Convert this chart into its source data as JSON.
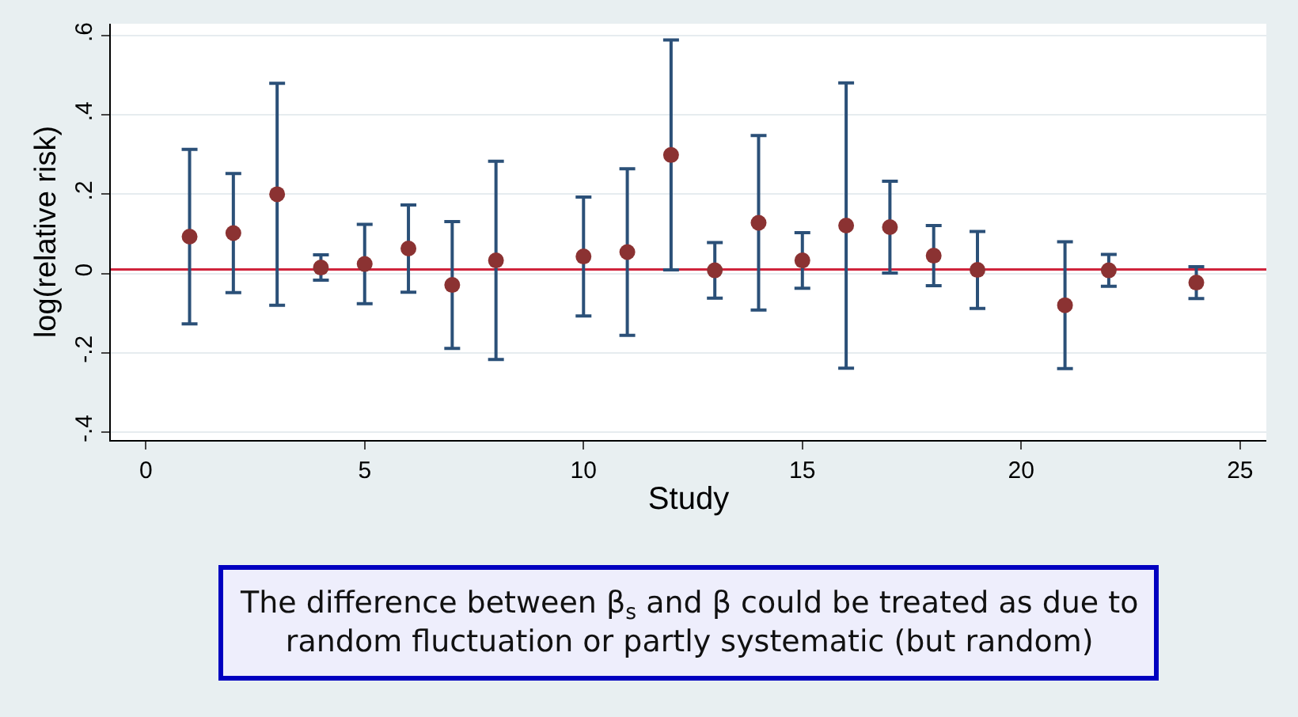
{
  "chart_data": {
    "type": "scatter",
    "xlabel": "Study",
    "ylabel": "log(relative risk)",
    "x": [
      1,
      2,
      3,
      4,
      5,
      6,
      7,
      8,
      9,
      10,
      11,
      12,
      13,
      14,
      15,
      16,
      17,
      18,
      19,
      20,
      21,
      22,
      23,
      24
    ],
    "series": [
      {
        "color": "#8b3232",
        "marker": "circle",
        "values": [
          0.093,
          0.102,
          0.2,
          0.015,
          0.024,
          0.063,
          -0.029,
          0.033,
          null,
          0.043,
          0.054,
          0.299,
          0.008,
          0.128,
          0.033,
          0.121,
          0.117,
          0.045,
          0.009,
          null,
          -0.08,
          0.008,
          null,
          -0.023
        ],
        "errors": [
          0.22,
          0.15,
          0.28,
          0.032,
          0.1,
          0.11,
          0.16,
          0.25,
          null,
          0.15,
          0.21,
          0.29,
          0.07,
          0.22,
          0.07,
          0.36,
          0.116,
          0.076,
          0.097,
          null,
          0.16,
          0.04,
          null,
          0.04
        ]
      }
    ],
    "xlim": [
      -0.8,
      25.6
    ],
    "xticks": [
      0,
      5,
      10,
      15,
      20,
      25
    ],
    "ylim": [
      -0.42,
      0.63
    ],
    "yticks": [
      {
        "value": -0.4,
        "label": "-.4"
      },
      {
        "value": -0.2,
        "label": "-.2"
      },
      {
        "value": 0,
        "label": "0"
      },
      {
        "value": 0.2,
        "label": ".2"
      },
      {
        "value": 0.4,
        "label": ".4"
      },
      {
        "value": 0.6,
        "label": ".6"
      }
    ],
    "grid": "y",
    "ref_lines": [
      {
        "axis": "y",
        "value": 0.01,
        "color": "#d0243c"
      }
    ],
    "annotations": [
      "The difference between β$_{s}$ and β could be treated as due to\nrandom fluctuation or partly systematic (but random)"
    ]
  }
}
